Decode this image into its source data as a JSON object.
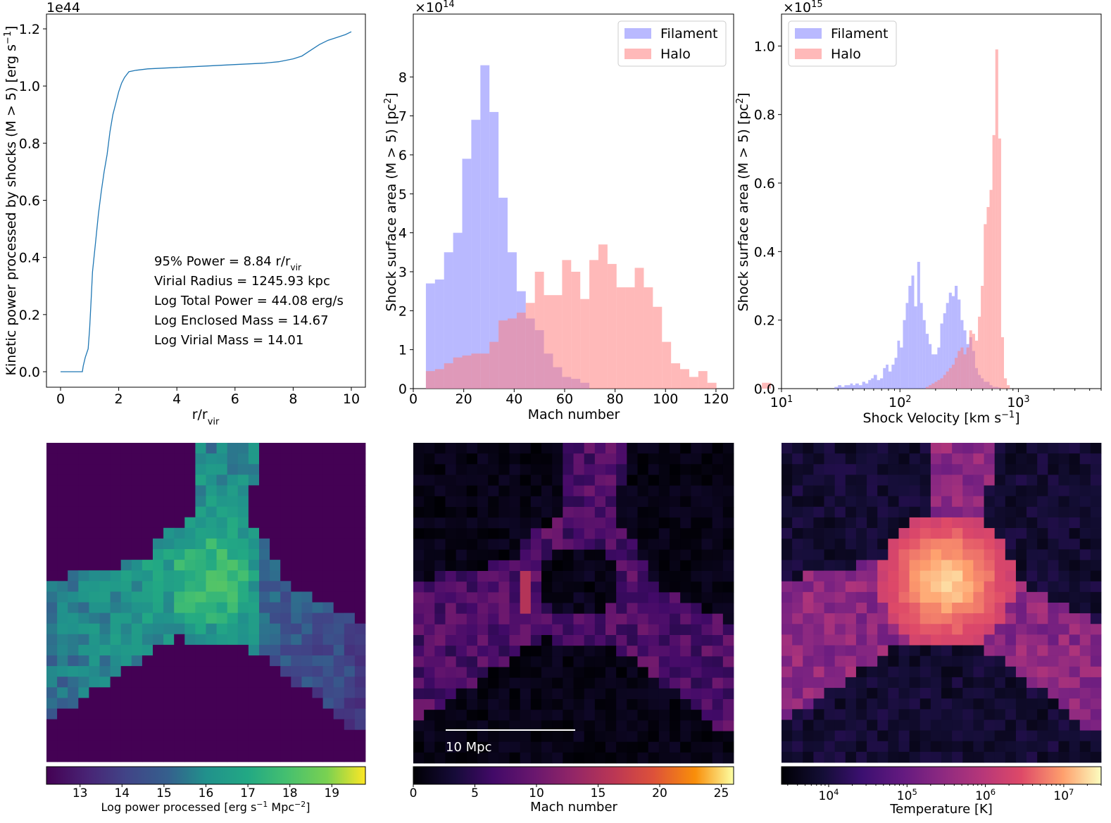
{
  "chart_data": [
    {
      "type": "line",
      "xlabel": "r/r",
      "xlabel_sub": "vir",
      "ylabel": "Kinetic power processed by shocks (M > 5) [erg s",
      "ylabel_sup": "−1",
      "ylabel_end": "]",
      "y_offset_text": "1e44",
      "xlim": [
        0,
        10
      ],
      "ylim": [
        0,
        1.2
      ],
      "xticks": [
        "0",
        "2",
        "4",
        "6",
        "8",
        "10"
      ],
      "yticks": [
        "0.0",
        "0.2",
        "0.4",
        "0.6",
        "0.8",
        "1.0",
        "1.2"
      ],
      "line_color": "#1f77b4",
      "series": [
        {
          "x": [
            0,
            0.75,
            0.78,
            0.85,
            0.95,
            1.0,
            1.05,
            1.1,
            1.2,
            1.3,
            1.4,
            1.5,
            1.6,
            1.7,
            1.8,
            1.9,
            2.0,
            2.1,
            2.2,
            2.35,
            2.6,
            3,
            4,
            5,
            6,
            7,
            7.5,
            8,
            8.3,
            8.6,
            8.9,
            9.2,
            9.5,
            9.8,
            10.0
          ],
          "y": [
            0,
            0,
            0.02,
            0.05,
            0.08,
            0.15,
            0.25,
            0.35,
            0.45,
            0.55,
            0.63,
            0.7,
            0.76,
            0.84,
            0.9,
            0.94,
            0.98,
            1.01,
            1.03,
            1.05,
            1.055,
            1.06,
            1.065,
            1.07,
            1.075,
            1.08,
            1.085,
            1.095,
            1.105,
            1.125,
            1.145,
            1.16,
            1.17,
            1.18,
            1.19
          ]
        }
      ],
      "annotations": [
        {
          "text": "95% Power = 8.84 r/r",
          "sub": "vir"
        },
        {
          "text": "Virial Radius = 1245.93 kpc"
        },
        {
          "text": "Log Total Power = 44.08 erg/s"
        },
        {
          "text": "Log Enclosed Mass = 14.67"
        },
        {
          "text": "Log Virial Mass = 14.01"
        }
      ]
    },
    {
      "type": "bar",
      "subtype": "histogram",
      "xlabel": "Mach number",
      "ylabel": "Shock surface area (M > 5) [pc",
      "ylabel_sup": "2",
      "ylabel_end": "]",
      "y_offset_text": "×10",
      "y_offset_exp": "14",
      "xlim": [
        0,
        127
      ],
      "ylim": [
        0,
        8.8
      ],
      "xticks": [
        "0",
        "20",
        "40",
        "60",
        "80",
        "100",
        "120"
      ],
      "yticks": [
        "0",
        "1",
        "2",
        "3",
        "4",
        "5",
        "6",
        "7",
        "8"
      ],
      "legend": {
        "placement": "top-right",
        "entries": [
          "Filament",
          "Halo"
        ]
      },
      "series": [
        {
          "name": "Filament",
          "color": "#8080ff",
          "bin_start": 5,
          "bin_width": 3.6,
          "values": [
            2.7,
            2.8,
            3.5,
            4.0,
            5.9,
            6.9,
            8.3,
            7.1,
            4.9,
            3.5,
            2.5,
            1.8,
            1.5,
            0.9,
            0.55,
            0.3,
            0.25,
            0.15
          ]
        },
        {
          "name": "Halo",
          "color": "#ff7f7f",
          "bin_start": 5,
          "bin_width": 3.6,
          "values": [
            0.45,
            0.5,
            0.65,
            0.8,
            0.85,
            0.9,
            0.9,
            1.2,
            1.75,
            1.8,
            1.95,
            2.2,
            3.0,
            2.4,
            2.4,
            3.3,
            3.0,
            2.3,
            3.3,
            3.7,
            3.2,
            2.6,
            2.6,
            3.1,
            2.6,
            2.1,
            1.2,
            0.65,
            0.5,
            0.3,
            0.45,
            0.15,
            0,
            0,
            0,
            0,
            0,
            0.15
          ]
        }
      ]
    },
    {
      "type": "bar",
      "subtype": "histogram",
      "xscale": "log",
      "xlabel": "Shock Velocity [km s",
      "xlabel_sup": "−1",
      "xlabel_end": "]",
      "ylabel": "Shock surface area (M > 5) [pc",
      "ylabel_sup": "2",
      "ylabel_end": "]",
      "y_offset_text": "×10",
      "y_offset_exp": "15",
      "xlim": [
        10,
        5000
      ],
      "ylim": [
        0,
        1.05
      ],
      "xticks": [
        {
          "base": "10",
          "exp": "1"
        },
        {
          "base": "10",
          "exp": "2"
        },
        {
          "base": "10",
          "exp": "3"
        }
      ],
      "yticks": [
        "0.0",
        "0.2",
        "0.4",
        "0.6",
        "0.8",
        "1.0"
      ],
      "legend": {
        "placement": "top-left",
        "entries": [
          "Filament",
          "Halo"
        ]
      },
      "series": [
        {
          "name": "Filament",
          "color": "#8080ff",
          "x": [
            28,
            30,
            32,
            34,
            36,
            38,
            40,
            42,
            45,
            48,
            51,
            54,
            57,
            60,
            64,
            68,
            72,
            76,
            80,
            85,
            90,
            95,
            100,
            106,
            112,
            118,
            125,
            132,
            140,
            148,
            156,
            165,
            175,
            185,
            196,
            207,
            219,
            232,
            245,
            259,
            274,
            290,
            307,
            325,
            344,
            364,
            385,
            407,
            431,
            456,
            482,
            510,
            540,
            571,
            604,
            639,
            676
          ],
          "values": [
            0.005,
            0.01,
            0.005,
            0.01,
            0.01,
            0.015,
            0.01,
            0.015,
            0.01,
            0.02,
            0.015,
            0.025,
            0.03,
            0.04,
            0.025,
            0.03,
            0.06,
            0.07,
            0.05,
            0.07,
            0.09,
            0.14,
            0.12,
            0.2,
            0.25,
            0.3,
            0.33,
            0.24,
            0.37,
            0.25,
            0.2,
            0.16,
            0.13,
            0.1,
            0.1,
            0.12,
            0.19,
            0.22,
            0.25,
            0.28,
            0.27,
            0.3,
            0.26,
            0.2,
            0.17,
            0.13,
            0.15,
            0.11,
            0.06,
            0.04,
            0.03,
            0.02,
            0.02,
            0.01,
            0.005,
            0.005,
            0.003
          ]
        },
        {
          "name": "Halo",
          "color": "#ff7f7f",
          "x": [
            165,
            175,
            185,
            196,
            207,
            219,
            232,
            245,
            259,
            274,
            290,
            307,
            325,
            344,
            364,
            385,
            407,
            431,
            456,
            482,
            510,
            540,
            571,
            604,
            639,
            676,
            715,
            756,
            800
          ],
          "values": [
            0.005,
            0.01,
            0.015,
            0.02,
            0.025,
            0.03,
            0.04,
            0.05,
            0.06,
            0.07,
            0.09,
            0.11,
            0.12,
            0.1,
            0.12,
            0.17,
            0.16,
            0.14,
            0.21,
            0.3,
            0.48,
            0.53,
            0.58,
            0.74,
            0.99,
            0.73,
            0.15,
            0.03,
            0.01
          ]
        }
      ]
    },
    {
      "type": "heatmap",
      "colormap": "viridis",
      "colorbar_label": "Log power processed [erg s",
      "colorbar_sup1": "−1",
      "colorbar_mid": " Mpc",
      "colorbar_sup2": "−2",
      "colorbar_end": "]",
      "colorbar_range": [
        12.2,
        19.8
      ],
      "colorbar_ticks": [
        "13",
        "14",
        "15",
        "16",
        "17",
        "18",
        "19"
      ]
    },
    {
      "type": "heatmap",
      "colormap": "inferno",
      "colorbar_label": "Mach number",
      "colorbar_range": [
        0,
        26
      ],
      "colorbar_ticks": [
        "0",
        "5",
        "10",
        "15",
        "20",
        "25"
      ],
      "scale_bar_label": "10 Mpc"
    },
    {
      "type": "heatmap",
      "colormap": "magma",
      "colorbar_label": "Temperature [K]",
      "colorbar_scale": "log",
      "colorbar_range": [
        2500,
        30000000
      ],
      "colorbar_ticks": [
        {
          "base": "10",
          "exp": "4"
        },
        {
          "base": "10",
          "exp": "5"
        },
        {
          "base": "10",
          "exp": "6"
        },
        {
          "base": "10",
          "exp": "7"
        }
      ]
    }
  ]
}
